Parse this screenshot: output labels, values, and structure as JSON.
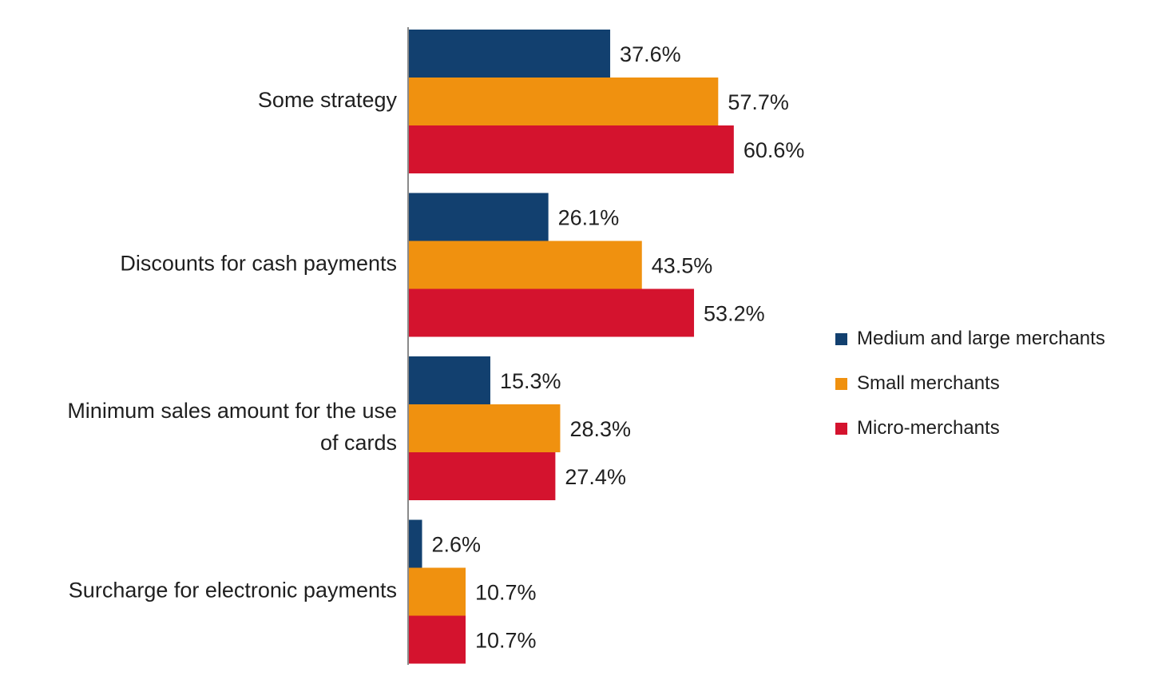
{
  "chart_data": {
    "type": "bar",
    "orientation": "horizontal",
    "categories": [
      [
        "Some strategy"
      ],
      [
        "Discounts for cash payments"
      ],
      [
        "Minimum sales amount for the use",
        "of cards"
      ],
      [
        "Surcharge for electronic payments"
      ]
    ],
    "series": [
      {
        "name": "Medium and large merchants",
        "color": "#12406f",
        "values": [
          37.6,
          26.1,
          15.3,
          2.6
        ]
      },
      {
        "name": "Small merchants",
        "color": "#f0910f",
        "values": [
          57.7,
          43.5,
          28.3,
          10.7
        ]
      },
      {
        "name": "Micro-merchants",
        "color": "#d4132e",
        "values": [
          60.6,
          53.2,
          27.4,
          10.7
        ]
      }
    ],
    "value_suffix": "%",
    "title": "",
    "xlabel": "",
    "ylabel": "",
    "xlim": [
      0,
      100
    ],
    "grid": false,
    "legend_position": "right"
  }
}
